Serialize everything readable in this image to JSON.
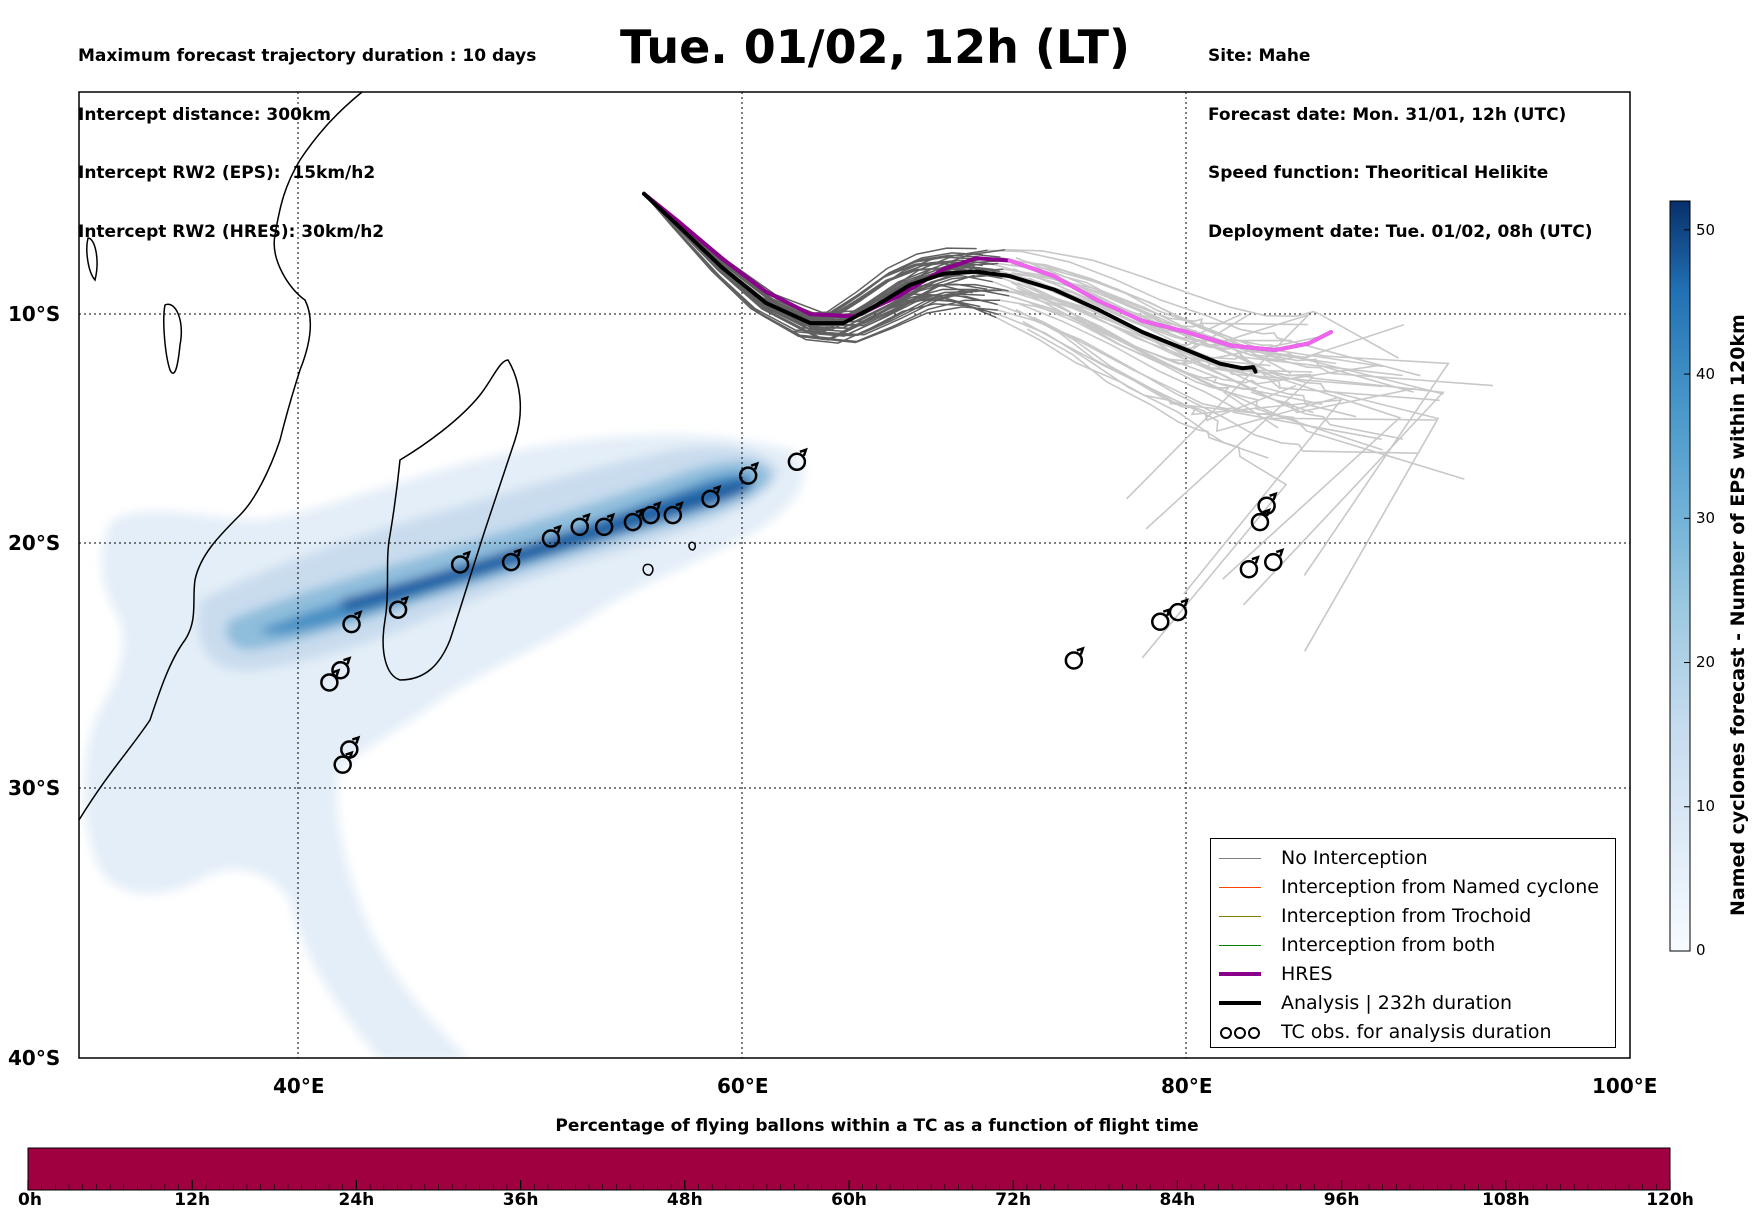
{
  "header_left": [
    "Maximum forecast trajectory duration : 10 days",
    "Intercept distance: 300km",
    "Intercept RW2 (EPS):  15km/h2",
    "Intercept RW2 (HRES): 30km/h2"
  ],
  "title": "Tue. 01/02, 12h (LT)",
  "header_right": [
    "Site: Mahe",
    "Forecast date: Mon. 31/01, 12h (UTC)",
    "Speed function: Theoritical Helikite",
    "Deployment date: Tue. 01/02, 08h (UTC)"
  ],
  "map": {
    "lon_range": [
      30,
      100
    ],
    "lat_range": [
      0,
      -40
    ],
    "lon_ticks": [
      "40°E",
      "60°E",
      "80°E",
      "100°E"
    ],
    "lat_ticks": [
      "10°S",
      "20°S",
      "30°S",
      "40°S"
    ],
    "grid": true
  },
  "colorbar": {
    "title": "Named cyclones forecast - Number of EPS within 120km",
    "ticks": [
      "0",
      "10",
      "20",
      "30",
      "40",
      "50"
    ],
    "range": [
      0,
      52
    ],
    "colormap": "Blues"
  },
  "legend": {
    "items": [
      {
        "label": "No Interception",
        "color": "#808080"
      },
      {
        "label": "Interception from Named cyclone",
        "color": "#ff4500"
      },
      {
        "label": "Interception from Trochoid",
        "color": "#808000"
      },
      {
        "label": "Interception from both",
        "color": "#008000"
      },
      {
        "label": "HRES",
        "color": "#8b008b"
      },
      {
        "label": "Analysis | 232h duration",
        "color": "#000000"
      },
      {
        "label": "TC obs. for analysis duration",
        "color": "#000000"
      }
    ],
    "tc_symbol": "ඊ"
  },
  "time_bar": {
    "title": "Percentage of flying ballons within a TC as a function of flight time",
    "labels": [
      "0h",
      "12h",
      "24h",
      "36h",
      "48h",
      "60h",
      "72h",
      "84h",
      "96h",
      "108h",
      "120h"
    ],
    "fill_color": "#a00040"
  },
  "tracks": {
    "launch": {
      "lon": 55.5,
      "lat": -4.6
    },
    "hres": [
      [
        55.5,
        -4.6
      ],
      [
        57,
        -5.8
      ],
      [
        59,
        -7.5
      ],
      [
        61,
        -9.0
      ],
      [
        63,
        -10.0
      ],
      [
        65,
        -10.1
      ],
      [
        67,
        -9.2
      ],
      [
        69,
        -8.0
      ],
      [
        70.5,
        -7.5
      ],
      [
        72,
        -7.6
      ],
      [
        74,
        -8.3
      ],
      [
        76,
        -9.4
      ],
      [
        78,
        -10.3
      ],
      [
        80,
        -10.8
      ],
      [
        82,
        -11.4
      ],
      [
        84,
        -11.6
      ],
      [
        85.5,
        -11.3
      ],
      [
        86.5,
        -10.8
      ]
    ],
    "analysis": [
      [
        55.5,
        -4.6
      ],
      [
        57,
        -6.0
      ],
      [
        59,
        -7.9
      ],
      [
        61,
        -9.5
      ],
      [
        63,
        -10.4
      ],
      [
        64.5,
        -10.4
      ],
      [
        66,
        -9.6
      ],
      [
        67.5,
        -8.7
      ],
      [
        69,
        -8.2
      ],
      [
        70.5,
        -8.1
      ],
      [
        72,
        -8.3
      ],
      [
        74,
        -8.9
      ],
      [
        76,
        -9.8
      ],
      [
        78,
        -10.8
      ],
      [
        80,
        -11.6
      ],
      [
        81.5,
        -12.2
      ],
      [
        82.5,
        -12.4
      ],
      [
        83,
        -12.35
      ],
      [
        83.1,
        -12.55
      ]
    ],
    "tc_obs": [
      [
        62.4,
        -16.5
      ],
      [
        60.2,
        -17.1
      ],
      [
        58.5,
        -18.1
      ],
      [
        56.8,
        -18.8
      ],
      [
        55.8,
        -18.8
      ],
      [
        55.0,
        -19.1
      ],
      [
        53.7,
        -19.3
      ],
      [
        52.6,
        -19.3
      ],
      [
        51.3,
        -19.8
      ],
      [
        49.5,
        -20.8
      ],
      [
        47.2,
        -20.9
      ],
      [
        44.4,
        -22.8
      ],
      [
        42.3,
        -23.4
      ],
      [
        41.8,
        -25.3
      ],
      [
        41.3,
        -25.8
      ],
      [
        42.2,
        -28.5
      ],
      [
        41.9,
        -29.1
      ],
      [
        74.9,
        -24.9
      ],
      [
        78.8,
        -23.3
      ],
      [
        79.6,
        -22.9
      ],
      [
        82.8,
        -21.1
      ],
      [
        83.9,
        -20.8
      ],
      [
        83.3,
        -19.1
      ],
      [
        83.6,
        -18.4
      ]
    ]
  }
}
